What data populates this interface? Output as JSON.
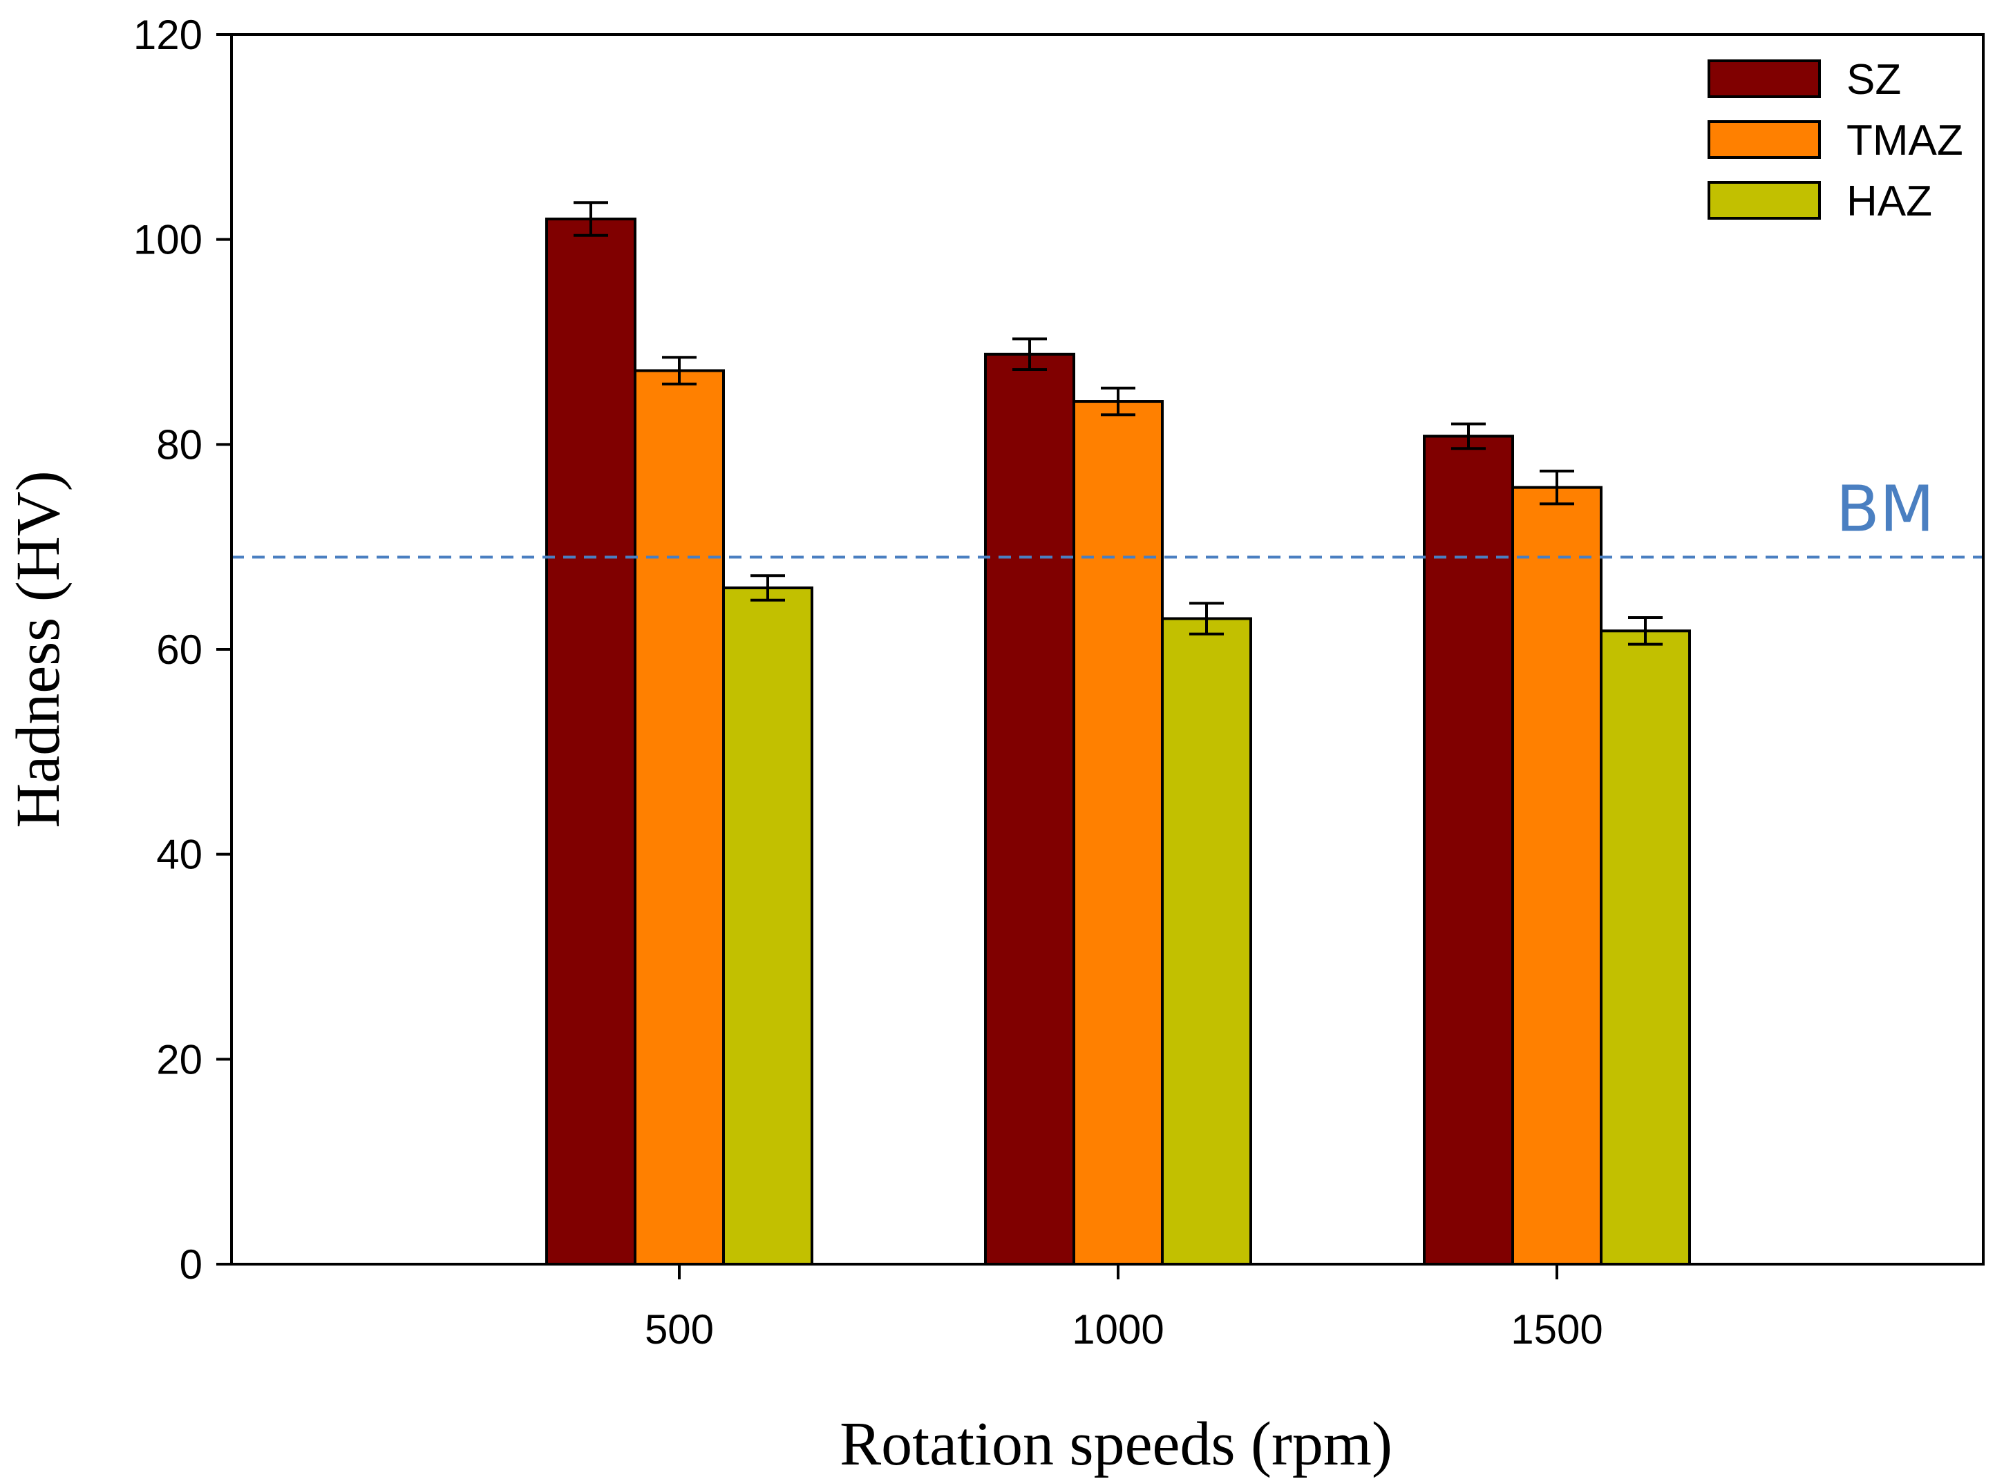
{
  "chart_data": {
    "type": "bar",
    "title": "",
    "xlabel": "Rotation speeds (rpm)",
    "ylabel": "Hadness (HV)",
    "categories": [
      "500",
      "1000",
      "1500"
    ],
    "ylim": [
      0,
      120
    ],
    "yticks": [
      0,
      20,
      40,
      60,
      80,
      100,
      120
    ],
    "grid": false,
    "legend_position": "top-right",
    "series": [
      {
        "name": "SZ",
        "color": "#800000",
        "values": [
          102,
          88.8,
          80.8
        ],
        "errors": [
          1.6,
          1.5,
          1.2
        ]
      },
      {
        "name": "TMAZ",
        "color": "#ff8000",
        "values": [
          87.2,
          84.2,
          75.8
        ],
        "errors": [
          1.3,
          1.3,
          1.6
        ]
      },
      {
        "name": "HAZ",
        "color": "#c2c000",
        "values": [
          66,
          63,
          61.8
        ],
        "errors": [
          1.2,
          1.5,
          1.3
        ]
      }
    ],
    "reference_line": {
      "label": "BM",
      "value": 69,
      "color": "#4a7fc1"
    }
  }
}
